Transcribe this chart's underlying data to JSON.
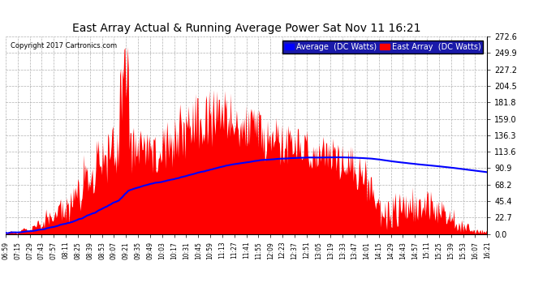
{
  "title": "East Array Actual & Running Average Power Sat Nov 11 16:21",
  "copyright": "Copyright 2017 Cartronics.com",
  "legend_avg": "Average  (DC Watts)",
  "legend_east": "East Array  (DC Watts)",
  "ymax": 272.6,
  "yticks": [
    0.0,
    22.7,
    45.4,
    68.2,
    90.9,
    113.6,
    136.3,
    159.0,
    181.8,
    204.5,
    227.2,
    249.9,
    272.6
  ],
  "bg_color": "#ffffff",
  "plot_bg_color": "#ffffff",
  "bar_color": "#ff0000",
  "avg_color": "#0000ff",
  "grid_color": "#b0b0b0",
  "title_color": "#000000",
  "x_labels": [
    "06:59",
    "07:15",
    "07:29",
    "07:43",
    "07:57",
    "08:11",
    "08:25",
    "08:39",
    "08:53",
    "09:07",
    "09:21",
    "09:35",
    "09:49",
    "10:03",
    "10:17",
    "10:31",
    "10:45",
    "10:59",
    "11:13",
    "11:27",
    "11:41",
    "11:55",
    "12:09",
    "12:23",
    "12:37",
    "12:51",
    "13:05",
    "13:19",
    "13:33",
    "13:47",
    "14:01",
    "14:15",
    "14:29",
    "14:43",
    "14:57",
    "15:11",
    "15:25",
    "15:39",
    "15:53",
    "16:07",
    "16:21"
  ]
}
